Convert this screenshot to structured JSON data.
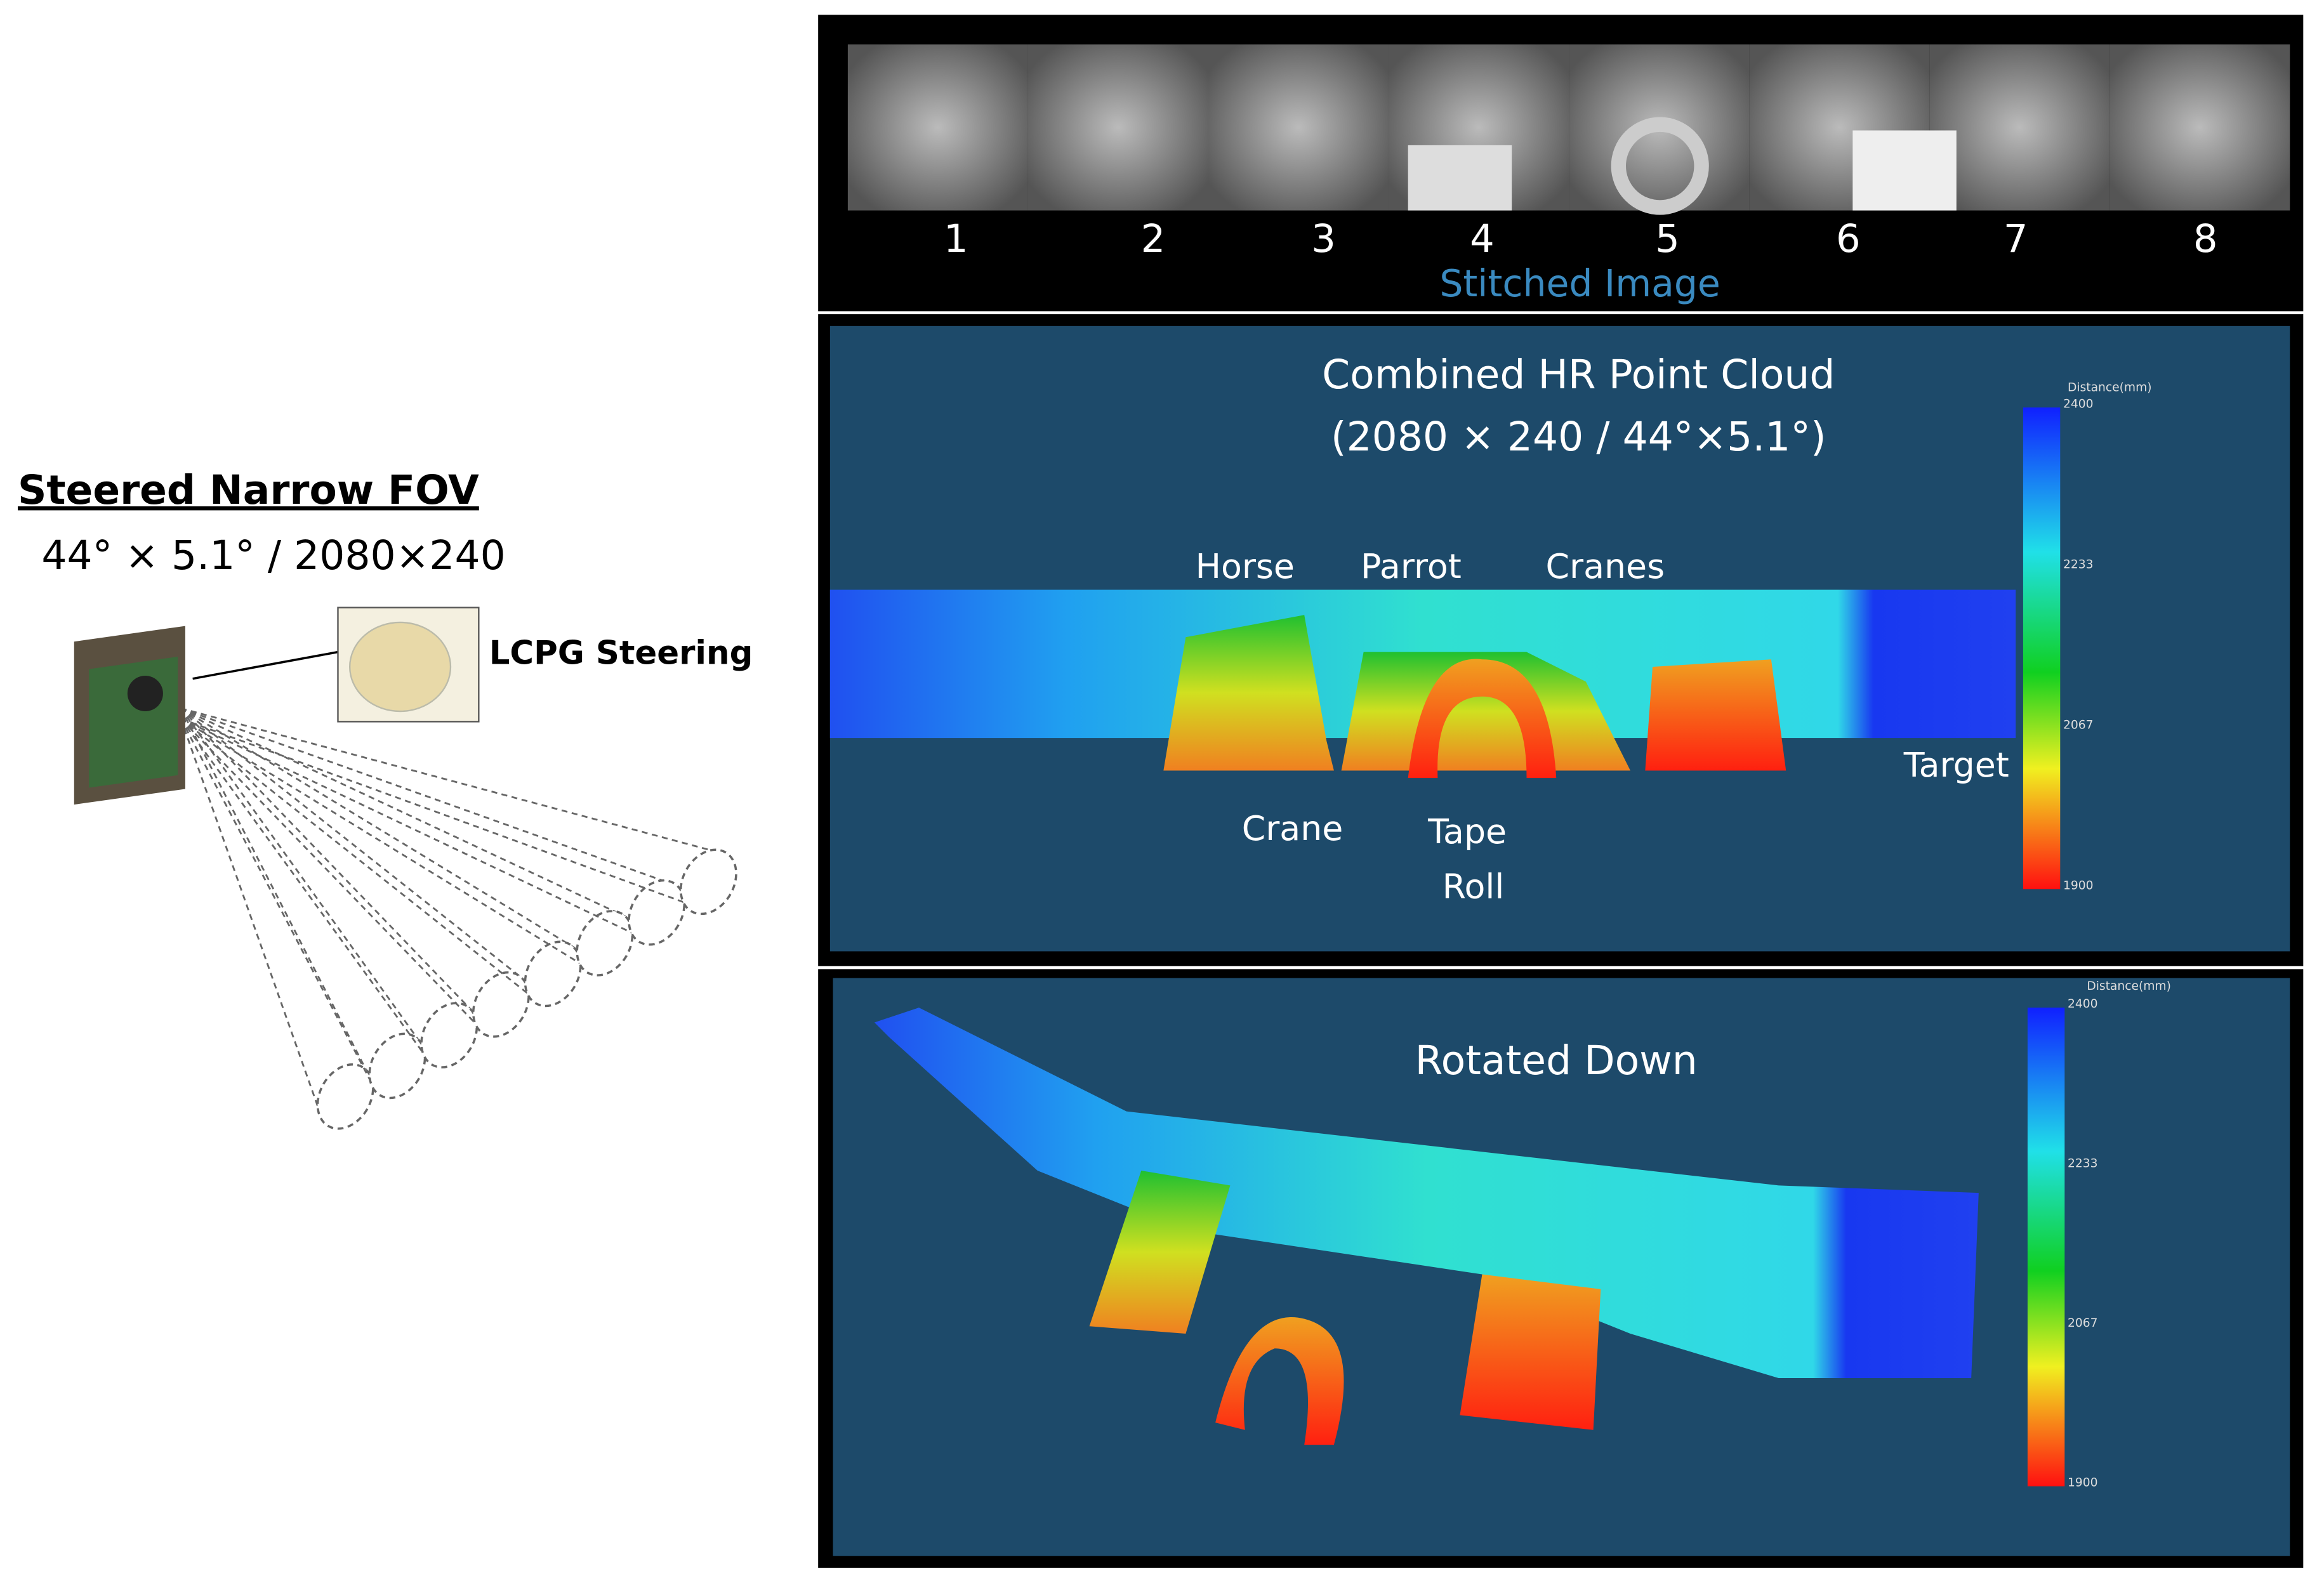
{
  "left": {
    "title": "Steered Narrow FOV",
    "spec": "44° × 5.1° / 2080×240",
    "steering_label": "LCPG Steering"
  },
  "stitched": {
    "frame_numbers": [
      "1",
      "2",
      "3",
      "4",
      "5",
      "6",
      "7",
      "8"
    ],
    "caption": "Stitched Image"
  },
  "point_cloud": {
    "title_line1": "Combined HR Point Cloud",
    "title_line2": "(2080 × 240 / 44°×5.1°)",
    "labels": {
      "horse": "Horse",
      "parrot": "Parrot",
      "cranes": "Cranes",
      "crane": "Crane",
      "tape": "Tape",
      "roll": "Roll",
      "target": "Target"
    },
    "colorbar": {
      "title": "Distance(mm)",
      "ticks": [
        2400,
        2233,
        2067,
        1900
      ]
    }
  },
  "rotated": {
    "title": "Rotated Down",
    "colorbar": {
      "title": "Distance(mm)",
      "ticks": [
        2400,
        2233,
        2067,
        1900
      ]
    }
  }
}
